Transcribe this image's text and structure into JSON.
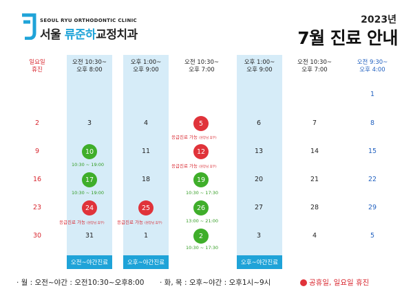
{
  "header": {
    "clinic_en": "SEOUL RYU ORTHODONTIC CLINIC",
    "clinic_ko_prefix": "서울 ",
    "clinic_ko_accent": "류준하",
    "clinic_ko_suffix": "교정치과",
    "year": "2023년",
    "title": "7월 진료 안내"
  },
  "columns": [
    {
      "line1": "일요일",
      "line2": "휴진",
      "color": "red"
    },
    {
      "line1": "오전 10:30~",
      "line2": "오후 8:00",
      "color": "black"
    },
    {
      "line1": "오후 1:00~",
      "line2": "오후 9:00",
      "color": "black"
    },
    {
      "line1": "오전 10:30~",
      "line2": "오후 7:00",
      "color": "black"
    },
    {
      "line1": "오후 1:00~",
      "line2": "오후 9:00",
      "color": "black"
    },
    {
      "line1": "오전 10:30~",
      "line2": "오후 7:00",
      "color": "black"
    },
    {
      "line1": "오전 9:30~",
      "line2": "오후 4:00",
      "color": "blue"
    }
  ],
  "weeks": [
    [
      "",
      "",
      "",
      "",
      "",
      "",
      "1"
    ],
    [
      "2",
      "3",
      "4",
      "5",
      "6",
      "7",
      "8"
    ],
    [
      "9",
      "10",
      "11",
      "12",
      "13",
      "14",
      "15"
    ],
    [
      "16",
      "17",
      "18",
      "19",
      "20",
      "21",
      "22"
    ],
    [
      "23",
      "24",
      "25",
      "26",
      "27",
      "28",
      "29"
    ],
    [
      "30",
      "31",
      "1",
      "2",
      "3",
      "4",
      "5"
    ]
  ],
  "notes": {
    "emergency": "응급진료 가능",
    "emergency_small": "(원장님 휴무)",
    "hours_a": "10:30 ~ 19:00",
    "hours_b": "10:30 ~ 17:30",
    "hours_c": "13:00 ~ 21:00"
  },
  "night_label": "오전~야간진료",
  "night_label_pm": "오후~야간진료",
  "footer": {
    "mon": "· 월 : 오전~야간 : 오전10:30~오후8:00",
    "tuethu": "· 화, 목 : 오후~야간 : 오후1시~9시",
    "holiday": "공휴일, 일요일 휴진"
  },
  "colors": {
    "accent": "#1fa3d8",
    "red": "#e0333a",
    "green": "#3fae2a",
    "blue": "#1f5fbf"
  }
}
